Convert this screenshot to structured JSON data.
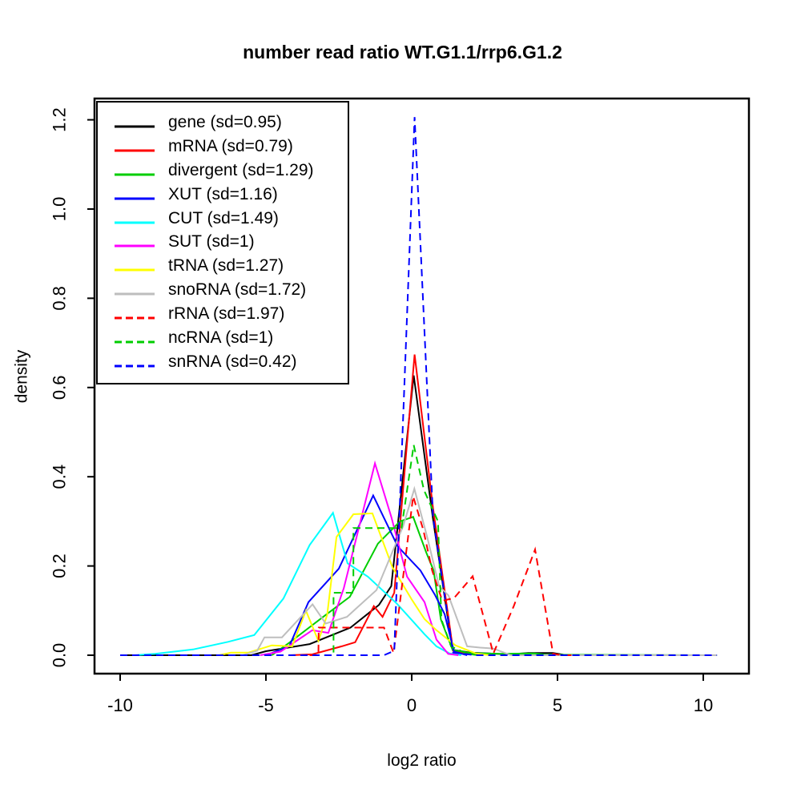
{
  "chart_data": {
    "type": "line",
    "title": "number read ratio WT.G1.1/rrp6.G1.2",
    "xlabel": "log2 ratio",
    "ylabel": "density",
    "xlim": [
      -10.879,
      11.566
    ],
    "ylim": [
      -0.0413,
      1.2477
    ],
    "x_ticks": [
      -10,
      -5,
      0,
      5,
      10
    ],
    "x_tick_labels": [
      "-10",
      "-5",
      "0",
      "5",
      "10"
    ],
    "y_ticks": [
      0,
      0.2,
      0.4,
      0.6,
      0.8,
      1.0,
      1.2
    ],
    "y_tick_labels": [
      "0.0",
      "0.2",
      "0.4",
      "0.6",
      "0.8",
      "1.0",
      "1.2"
    ],
    "grid": false,
    "legend_position": "top-left-inside",
    "axis_color": "#000000",
    "background_color": "#ffffff",
    "series": [
      {
        "name": "gene",
        "label": "gene (sd=0.95)",
        "color": "#000000",
        "dash": "solid",
        "points": [
          [
            -9.9,
            0
          ],
          [
            -5.5,
            0
          ],
          [
            -5.0,
            0.009
          ],
          [
            -3.5,
            0.025
          ],
          [
            -2.1,
            0.062
          ],
          [
            -1.12,
            0.113
          ],
          [
            -0.7,
            0.155
          ],
          [
            0.07,
            0.627
          ],
          [
            0.72,
            0.31
          ],
          [
            1.4,
            0.012
          ],
          [
            2.0,
            0.006
          ],
          [
            3.3,
            0.002
          ],
          [
            4.0,
            0.005
          ],
          [
            4.85,
            0.005
          ],
          [
            5.3,
            0
          ],
          [
            5.6,
            0
          ]
        ]
      },
      {
        "name": "mRNA",
        "label": "mRNA (sd=0.79)",
        "color": "#FF0000",
        "dash": "solid",
        "points": [
          [
            -4.2,
            0
          ],
          [
            -3.4,
            0.002
          ],
          [
            -2.4,
            0.02
          ],
          [
            -1.94,
            0.029
          ],
          [
            -1.3,
            0.11
          ],
          [
            -1.0,
            0.086
          ],
          [
            -0.6,
            0.14
          ],
          [
            0.1,
            0.674
          ],
          [
            0.73,
            0.33
          ],
          [
            1.42,
            0.01
          ],
          [
            1.9,
            0.003
          ],
          [
            2.4,
            0
          ]
        ]
      },
      {
        "name": "divergent",
        "label": "divergent (sd=1.29)",
        "color": "#00CD00",
        "dash": "solid",
        "points": [
          [
            -4.8,
            0
          ],
          [
            -4.2,
            0.028
          ],
          [
            -3.1,
            0.083
          ],
          [
            -2.12,
            0.131
          ],
          [
            -1.16,
            0.25
          ],
          [
            -0.4,
            0.3
          ],
          [
            0.05,
            0.31
          ],
          [
            0.5,
            0.23
          ],
          [
            0.75,
            0.19
          ],
          [
            1.0,
            0.08
          ],
          [
            1.4,
            0.012
          ],
          [
            2.0,
            0.005
          ],
          [
            3.0,
            0.003
          ],
          [
            4.2,
            0.004
          ],
          [
            4.6,
            0.001
          ],
          [
            10.47,
            0
          ]
        ]
      },
      {
        "name": "XUT",
        "label": "XUT (sd=1.16)",
        "color": "#0000FF",
        "dash": "solid",
        "points": [
          [
            -5.0,
            0
          ],
          [
            -4.2,
            0.02
          ],
          [
            -3.54,
            0.119
          ],
          [
            -2.5,
            0.194
          ],
          [
            -1.32,
            0.358
          ],
          [
            -0.48,
            0.244
          ],
          [
            0.3,
            0.19
          ],
          [
            0.8,
            0.135
          ],
          [
            1.13,
            0.092
          ],
          [
            1.45,
            0.008
          ],
          [
            1.9,
            0
          ]
        ]
      },
      {
        "name": "CUT",
        "label": "CUT (sd=1.49)",
        "color": "#00FFFF",
        "dash": "solid",
        "points": [
          [
            -9.5,
            0
          ],
          [
            -8.8,
            0.003
          ],
          [
            -7.5,
            0.013
          ],
          [
            -6.3,
            0.03
          ],
          [
            -5.4,
            0.045
          ],
          [
            -4.4,
            0.127
          ],
          [
            -3.5,
            0.247
          ],
          [
            -2.7,
            0.319
          ],
          [
            -2.2,
            0.206
          ],
          [
            -1.5,
            0.176
          ],
          [
            -0.5,
            0.115
          ],
          [
            0.44,
            0.047
          ],
          [
            0.85,
            0.02
          ],
          [
            1.3,
            0.004
          ],
          [
            1.7,
            0
          ]
        ]
      },
      {
        "name": "SUT",
        "label": "SUT (sd=1)",
        "color": "#FF00FF",
        "dash": "solid",
        "points": [
          [
            -5.2,
            0
          ],
          [
            -4.5,
            0.008
          ],
          [
            -3.41,
            0.056
          ],
          [
            -2.86,
            0.05
          ],
          [
            -2.33,
            0.15
          ],
          [
            -1.26,
            0.43
          ],
          [
            -0.7,
            0.31
          ],
          [
            -0.16,
            0.176
          ],
          [
            0.44,
            0.119
          ],
          [
            0.85,
            0.035
          ],
          [
            1.25,
            0.003
          ],
          [
            1.6,
            0
          ]
        ]
      },
      {
        "name": "tRNA",
        "label": "tRNA (sd=1.27)",
        "color": "#FFFF00",
        "dash": "solid",
        "points": [
          [
            -6.6,
            0
          ],
          [
            -6.2,
            0.006
          ],
          [
            -5.6,
            0.006
          ],
          [
            -4.8,
            0.022
          ],
          [
            -4.1,
            0.02
          ],
          [
            -3.63,
            0.1
          ],
          [
            -3.2,
            0.032
          ],
          [
            -2.9,
            0.09
          ],
          [
            -2.58,
            0.265
          ],
          [
            -2.0,
            0.316
          ],
          [
            -1.35,
            0.318
          ],
          [
            -0.66,
            0.197
          ],
          [
            0.0,
            0.125
          ],
          [
            0.44,
            0.081
          ],
          [
            0.85,
            0.056
          ],
          [
            1.5,
            0.022
          ],
          [
            2.2,
            0.004
          ],
          [
            2.7,
            0
          ]
        ]
      },
      {
        "name": "snoRNA",
        "label": "snoRNA (sd=1.72)",
        "color": "#BEBEBE",
        "dash": "solid",
        "points": [
          [
            -5.8,
            0
          ],
          [
            -5.3,
            0.01
          ],
          [
            -5.05,
            0.04
          ],
          [
            -4.45,
            0.04
          ],
          [
            -3.4,
            0.114
          ],
          [
            -2.95,
            0.071
          ],
          [
            -2.22,
            0.086
          ],
          [
            -1.9,
            0.105
          ],
          [
            -1.21,
            0.146
          ],
          [
            -0.29,
            0.29
          ],
          [
            0.09,
            0.373
          ],
          [
            0.53,
            0.265
          ],
          [
            0.94,
            0.155
          ],
          [
            1.26,
            0.134
          ],
          [
            1.9,
            0.02
          ],
          [
            2.35,
            0.017
          ],
          [
            2.8,
            0.015
          ],
          [
            3.4,
            0
          ],
          [
            10.47,
            0
          ]
        ]
      },
      {
        "name": "rRNA",
        "label": "rRNA (sd=1.97)",
        "color": "#FF0000",
        "dash": "dashed",
        "points": [
          [
            -3.5,
            0
          ],
          [
            -3.2,
            0
          ],
          [
            -3.19,
            0.062
          ],
          [
            -0.95,
            0.062
          ],
          [
            -0.62,
            0.005
          ],
          [
            0.05,
            0.356
          ],
          [
            0.4,
            0.28
          ],
          [
            0.7,
            0.19
          ],
          [
            1.05,
            0.122
          ],
          [
            1.45,
            0.128
          ],
          [
            2.09,
            0.177
          ],
          [
            2.8,
            0.004
          ],
          [
            3.5,
            0.11
          ],
          [
            4.23,
            0.237
          ],
          [
            4.85,
            0.003
          ],
          [
            5.2,
            0
          ],
          [
            5.5,
            0
          ]
        ]
      },
      {
        "name": "ncRNA",
        "label": "ncRNA (sd=1)",
        "color": "#00CD00",
        "dash": "dashed",
        "points": [
          [
            -3.0,
            0
          ],
          [
            -2.68,
            0
          ],
          [
            -2.68,
            0.14
          ],
          [
            -2.0,
            0.14
          ],
          [
            -2.0,
            0.285
          ],
          [
            -0.35,
            0.285
          ],
          [
            0.07,
            0.471
          ],
          [
            0.42,
            0.37
          ],
          [
            0.9,
            0.3
          ],
          [
            1.02,
            0.08
          ],
          [
            1.35,
            0.02
          ],
          [
            1.9,
            0.003
          ],
          [
            2.3,
            0
          ]
        ]
      },
      {
        "name": "snRNA",
        "label": "snRNA (sd=0.42)",
        "color": "#0000FF",
        "dash": "dashed",
        "points": [
          [
            -10.0,
            0
          ],
          [
            -0.95,
            0
          ],
          [
            -0.6,
            0.01
          ],
          [
            0.1,
            1.206
          ],
          [
            0.73,
            0.31
          ],
          [
            1.42,
            0.006
          ],
          [
            2.2,
            0
          ],
          [
            10.47,
            0
          ]
        ]
      }
    ]
  }
}
